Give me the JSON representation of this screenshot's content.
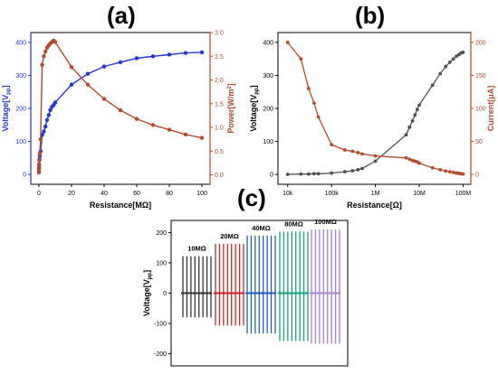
{
  "labels": {
    "a": "(a)",
    "b": "(b)",
    "c": "(c)"
  },
  "colors": {
    "blue": "#2233dd",
    "brown": "#b5492a",
    "dark": "#505050"
  },
  "chart_data": [
    {
      "id": "a",
      "type": "line",
      "xlabel": "Resistance[MΩ]",
      "ylabel_left": "Voltage[V",
      "ylabel_left_sub": "pp",
      "ylabel_left_end": "]",
      "ylabel_right": "Power[W/m",
      "ylabel_right_sup": "2",
      "ylabel_right_end": "]",
      "xlim": [
        -5,
        105
      ],
      "ylim_left": [
        -30,
        430
      ],
      "ylim_right": [
        -0.2,
        3.0
      ],
      "xticks": [
        0,
        20,
        40,
        60,
        80,
        100
      ],
      "yticks_left": [
        0,
        100,
        200,
        300,
        400
      ],
      "yticks_right": [
        0.0,
        0.5,
        1.0,
        1.5,
        2.0,
        2.5,
        3.0
      ],
      "ytick_labels_right": [
        "0.0",
        "0.5",
        "1.0",
        "1.5",
        "2.0",
        "2.5",
        "3.0"
      ],
      "series": [
        {
          "axis": "left",
          "color": "#2233dd",
          "x": [
            0.01,
            0.05,
            0.1,
            0.3,
            0.5,
            1,
            2,
            3,
            4,
            5,
            6,
            7,
            8,
            9,
            10,
            20,
            30,
            40,
            50,
            60,
            70,
            80,
            90,
            100
          ],
          "y": [
            8,
            20,
            30,
            45,
            55,
            70,
            120,
            130,
            145,
            165,
            180,
            195,
            205,
            210,
            218,
            272,
            305,
            327,
            340,
            352,
            358,
            363,
            368,
            370
          ]
        },
        {
          "axis": "right",
          "color": "#b5492a",
          "x": [
            0.01,
            0.05,
            0.1,
            0.3,
            0.5,
            1,
            2,
            3,
            4,
            5,
            6,
            7,
            8,
            9,
            10,
            20,
            30,
            40,
            50,
            60,
            70,
            80,
            90,
            100
          ],
          "y": [
            0.05,
            0.12,
            0.2,
            0.3,
            0.45,
            0.75,
            2.32,
            2.5,
            2.6,
            2.68,
            2.73,
            2.77,
            2.8,
            2.83,
            2.8,
            2.27,
            1.9,
            1.6,
            1.36,
            1.18,
            1.05,
            0.95,
            0.85,
            0.78
          ]
        }
      ]
    },
    {
      "id": "b",
      "type": "line",
      "xscale": "log",
      "xlabel": "Resistance[Ω]",
      "ylabel_left": "Voltage[V",
      "ylabel_left_sub": "pp",
      "ylabel_left_end": "]",
      "ylabel_right": "Current[μA]",
      "xlim": [
        6000,
        150000000
      ],
      "ylim_left": [
        -30,
        430
      ],
      "ylim_right": [
        -15,
        215
      ],
      "xticks": [
        10000,
        100000,
        1000000,
        10000000,
        100000000
      ],
      "xtick_labels": [
        "10k",
        "100k",
        "1M",
        "10M",
        "100M"
      ],
      "yticks_left": [
        0,
        100,
        200,
        300,
        400
      ],
      "yticks_right": [
        0,
        50,
        100,
        150,
        200
      ],
      "series": [
        {
          "axis": "left",
          "color": "#505050",
          "x": [
            10000,
            20000,
            30000,
            40000,
            50000,
            100000,
            200000,
            300000,
            400000,
            500000,
            1000000,
            5000000,
            6000000,
            7000000,
            8000000,
            9000000,
            10000000,
            20000000,
            30000000,
            40000000,
            50000000,
            60000000,
            70000000,
            80000000,
            90000000,
            100000000
          ],
          "y": [
            0,
            1,
            1,
            2,
            2,
            4,
            8,
            11,
            14,
            18,
            40,
            120,
            143,
            162,
            180,
            197,
            210,
            270,
            305,
            327,
            340,
            350,
            358,
            363,
            368,
            370
          ]
        },
        {
          "axis": "right",
          "color": "#b5492a",
          "x": [
            10000,
            20000,
            30000,
            40000,
            50000,
            100000,
            200000,
            300000,
            400000,
            500000,
            1000000,
            5000000,
            6000000,
            7000000,
            8000000,
            9000000,
            10000000,
            20000000,
            30000000,
            40000000,
            50000000,
            60000000,
            70000000,
            80000000,
            90000000,
            100000000
          ],
          "y": [
            200,
            175,
            130,
            108,
            87,
            45,
            37,
            35,
            33,
            31,
            28,
            25,
            23,
            21,
            20,
            19,
            17,
            10,
            7,
            5,
            4,
            3,
            2,
            1.5,
            1,
            0.5
          ]
        }
      ]
    },
    {
      "id": "c",
      "type": "line",
      "ylabel": "Voltage[V",
      "ylabel_sub": "pp",
      "ylabel_end": "]",
      "ylim": [
        -240,
        240
      ],
      "yticks": [
        -200,
        -100,
        0,
        100,
        200
      ],
      "series": [
        {
          "name": "10MΩ",
          "color": "#333333",
          "pos": 122,
          "neg": -80
        },
        {
          "name": "20MΩ",
          "color": "#d22222",
          "pos": 163,
          "neg": -107
        },
        {
          "name": "40MΩ",
          "color": "#1f5fbf",
          "pos": 190,
          "neg": -133
        },
        {
          "name": "80MΩ",
          "color": "#11a37f",
          "pos": 203,
          "neg": -158
        },
        {
          "name": "100MΩ",
          "color": "#a77fcc",
          "pos": 210,
          "neg": -167
        }
      ]
    }
  ]
}
